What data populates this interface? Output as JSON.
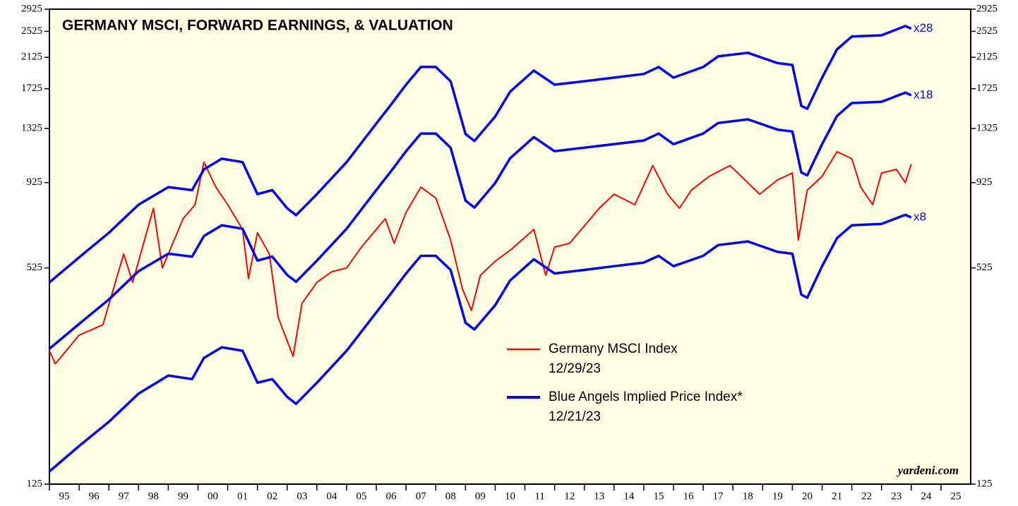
{
  "chart_data": {
    "type": "line",
    "title": "GERMANY MSCI, FORWARD EARNINGS, & VALUATION",
    "source": "yardeni.com",
    "log_scale": true,
    "ylim": [
      125,
      2925
    ],
    "yticks": [
      125,
      525,
      925,
      1325,
      1725,
      2125,
      2525,
      2925
    ],
    "xlim": [
      1995,
      2026
    ],
    "categories": [
      "95",
      "96",
      "97",
      "98",
      "99",
      "00",
      "01",
      "02",
      "03",
      "04",
      "05",
      "06",
      "07",
      "08",
      "09",
      "10",
      "11",
      "12",
      "13",
      "14",
      "15",
      "16",
      "17",
      "18",
      "19",
      "20",
      "21",
      "22",
      "23",
      "24",
      "25"
    ],
    "series": [
      {
        "name": "Germany MSCI Index",
        "date": "12/29/23",
        "color": "#ff0000",
        "x": [
          1995.0,
          1995.2,
          1996.0,
          1996.8,
          1997.5,
          1997.8,
          1998.5,
          1998.8,
          1999.5,
          1999.9,
          2000.2,
          2000.6,
          2001.0,
          2001.5,
          2001.7,
          2002.0,
          2002.4,
          2002.7,
          2003.2,
          2003.5,
          2004.0,
          2004.5,
          2005.0,
          2005.5,
          2006.3,
          2006.6,
          2007.0,
          2007.5,
          2008.0,
          2008.5,
          2008.9,
          2009.2,
          2009.5,
          2010.0,
          2010.5,
          2011.3,
          2011.7,
          2012.0,
          2012.5,
          2013.0,
          2013.5,
          2014.0,
          2014.7,
          2015.3,
          2015.8,
          2016.2,
          2016.6,
          2017.2,
          2017.9,
          2018.5,
          2018.9,
          2019.5,
          2020.0,
          2020.2,
          2020.5,
          2021.0,
          2021.5,
          2022.0,
          2022.3,
          2022.7,
          2023.0,
          2023.5,
          2023.8,
          2024.0
        ],
        "lines": [
          {
            "values": [
              303,
              278,
              336,
              360,
              576,
              477,
              780,
              525,
              728,
              799,
              1060,
              898,
              799,
              678,
              489,
              663,
              576,
              378,
              292,
              415,
              477,
              512,
              525,
              603,
              728,
              618,
              760,
              898,
              835,
              632,
              456,
              396,
              500,
              549,
              590,
              678,
              500,
              603,
              618,
              694,
              780,
              857,
              799,
              1036,
              857,
              780,
              880,
              964,
              1036,
              925,
              857,
              942,
              986,
              632,
              880,
              964,
              1136,
              1084,
              898,
              799,
              986,
              1010,
              925,
              1046
            ]
          }
        ]
      },
      {
        "name": "Blue Angels Implied Price Index*",
        "date": "12/21/23",
        "color": "#0000ff",
        "x": [
          1995.0,
          1996.0,
          1997.0,
          1998.0,
          1999.0,
          1999.8,
          2000.2,
          2000.8,
          2001.5,
          2002.0,
          2002.5,
          2003.0,
          2003.3,
          2004.0,
          2005.0,
          2006.0,
          2006.5,
          2007.0,
          2007.5,
          2008.0,
          2008.5,
          2009.0,
          2009.3,
          2010.0,
          2010.5,
          2011.3,
          2012.0,
          2013.0,
          2014.0,
          2015.0,
          2015.5,
          2016.0,
          2017.0,
          2017.5,
          2018.5,
          2019.5,
          2020.0,
          2020.3,
          2020.5,
          2021.0,
          2021.5,
          2022.0,
          2023.0,
          2023.8,
          2024.0
        ],
        "lines": [
          {
            "label": "x28",
            "values": [
              477,
              563,
              663,
              799,
              898,
              880,
              1010,
              1084,
              1060,
              857,
              880,
              780,
              745,
              857,
              1060,
              1370,
              1554,
              1772,
              1993,
              1993,
              1813,
              1277,
              1220,
              1435,
              1691,
              1946,
              1772,
              1813,
              1857,
              1903,
              1993,
              1857,
              1993,
              2138,
              2190,
              2045,
              2020,
              1540,
              1510,
              1857,
              2240,
              2440,
              2460,
              2615,
              2570
            ]
          },
          {
            "label": "x18",
            "values": [
              307,
              362,
              426,
              514,
              577,
              566,
              649,
              697,
              681,
              551,
              566,
              501,
              479,
              551,
              681,
              881,
              999,
              1139,
              1281,
              1281,
              1166,
              821,
              784,
              923,
              1087,
              1251,
              1139,
              1166,
              1194,
              1223,
              1281,
              1194,
              1281,
              1374,
              1408,
              1315,
              1299,
              990,
              971,
              1194,
              1440,
              1569,
              1581,
              1681,
              1652
            ]
          },
          {
            "label": "x8",
            "values": [
              136,
              161,
              189,
              228,
              257,
              251,
              289,
              310,
              303,
              245,
              251,
              223,
              213,
              245,
              303,
              391,
              444,
              506,
              569,
              569,
              518,
              365,
              349,
              410,
              483,
              556,
              506,
              518,
              531,
              544,
              569,
              531,
              569,
              611,
              626,
              584,
              577,
              440,
              431,
              531,
              640,
              697,
              703,
              747,
              734
            ]
          }
        ]
      }
    ]
  }
}
